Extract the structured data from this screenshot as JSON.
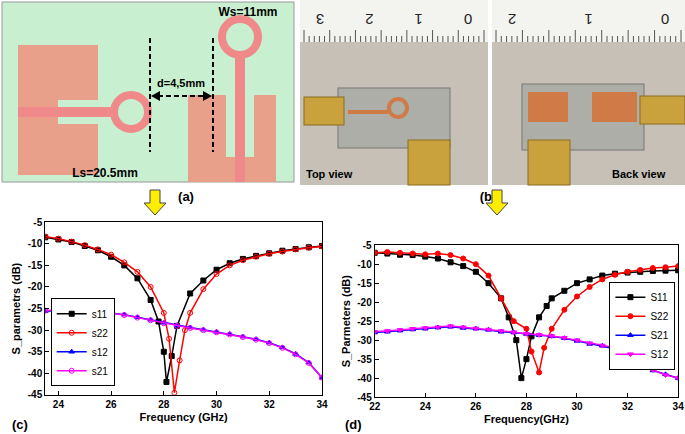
{
  "diagram": {
    "label": "(a)",
    "width_label": "Ws=11mm",
    "gap_label": "d=4,5mm",
    "length_label": "Ls=20.5mm"
  },
  "photo": {
    "label": "(b)",
    "views": [
      {
        "caption": "Top view",
        "ruler": [
          "3",
          "2",
          "1",
          "0"
        ]
      },
      {
        "caption": "Back view",
        "ruler": [
          "2",
          "1",
          "0"
        ]
      }
    ]
  },
  "chart_data": [
    {
      "type": "line",
      "label": "(c)",
      "x_label": "Frequency (GHz)",
      "y_label": "S_parametrs (dB)",
      "xlim": [
        23.5,
        34
      ],
      "xticks": [
        24,
        26,
        28,
        30,
        32,
        34
      ],
      "ylim": [
        -45,
        -5
      ],
      "yticks": [
        -45,
        -40,
        -35,
        -30,
        -25,
        -20,
        -15,
        -10,
        -5
      ],
      "grid": false,
      "legend": "lower left",
      "series": [
        {
          "name": "s11",
          "color": "#000000",
          "marker": "square",
          "x": [
            23.5,
            24,
            24.5,
            25,
            25.5,
            26,
            26.5,
            27,
            27.5,
            27.8,
            28,
            28.1,
            28.3,
            28.5,
            29,
            29.5,
            30,
            30.5,
            31,
            31.5,
            32,
            32.5,
            33,
            33.5,
            34
          ],
          "values": [
            -8.5,
            -9,
            -9.6,
            -10.5,
            -11.5,
            -13,
            -15,
            -18,
            -23,
            -28,
            -35,
            -42,
            -36,
            -29,
            -21.5,
            -18.5,
            -16,
            -14.5,
            -13.5,
            -12.8,
            -12.2,
            -11.6,
            -11.2,
            -10.8,
            -10.5
          ]
        },
        {
          "name": "s22",
          "color": "#ff0000",
          "marker": "circle-open",
          "x": [
            23.5,
            24,
            24.5,
            25,
            25.5,
            26,
            26.5,
            27,
            27.5,
            28,
            28.2,
            28.4,
            28.6,
            28.8,
            29,
            29.5,
            30,
            30.5,
            31,
            31.5,
            32,
            32.5,
            33,
            33.5,
            34
          ],
          "values": [
            -8.3,
            -8.8,
            -9.5,
            -10.3,
            -11.3,
            -12.5,
            -14.3,
            -16.5,
            -20,
            -26,
            -32,
            -44.5,
            -37,
            -30,
            -26,
            -20.5,
            -17,
            -15,
            -13.8,
            -13,
            -12.3,
            -11.8,
            -11.3,
            -10.9,
            -10.6
          ]
        },
        {
          "name": "s12",
          "color": "#0000ff",
          "marker": "triangle-up",
          "x": [
            23.5,
            24,
            24.5,
            25,
            25.5,
            26,
            26.5,
            27,
            27.5,
            28,
            28.5,
            29,
            29.5,
            30,
            30.5,
            31,
            31.5,
            32,
            32.5,
            33,
            33.5,
            34
          ],
          "values": [
            -25.6,
            -25.4,
            -25.3,
            -25.4,
            -25.6,
            -26,
            -26.4,
            -27,
            -27.6,
            -28.3,
            -28.9,
            -29.4,
            -29.9,
            -30.4,
            -30.9,
            -31.5,
            -32.1,
            -32.9,
            -34,
            -35.5,
            -37.5,
            -41
          ]
        },
        {
          "name": "s21",
          "color": "#ff00ff",
          "marker": "circle-open",
          "x": [
            23.5,
            24,
            24.5,
            25,
            25.5,
            26,
            26.5,
            27,
            27.5,
            28,
            28.5,
            29,
            29.5,
            30,
            30.5,
            31,
            31.5,
            32,
            32.5,
            33,
            33.5,
            34
          ],
          "values": [
            -25.5,
            -25.3,
            -25.3,
            -25.4,
            -25.7,
            -26.1,
            -26.5,
            -27.1,
            -27.7,
            -28.4,
            -29,
            -29.5,
            -30,
            -30.5,
            -31,
            -31.6,
            -32.2,
            -33,
            -34.1,
            -35.6,
            -37.6,
            -41
          ]
        }
      ]
    },
    {
      "type": "line",
      "label": "(d)",
      "x_label": "Frequency(GHz)",
      "y_label": "S_Parmeters (dB)",
      "xlim": [
        22,
        34
      ],
      "xticks": [
        22,
        24,
        26,
        28,
        30,
        32,
        34
      ],
      "ylim": [
        -45,
        -5
      ],
      "yticks": [
        -45,
        -40,
        -35,
        -30,
        -25,
        -20,
        -15,
        -10,
        -5
      ],
      "grid": false,
      "legend": "upper right",
      "series": [
        {
          "name": "S11",
          "color": "#000000",
          "marker": "square",
          "x": [
            22,
            22.5,
            23,
            23.5,
            24,
            24.5,
            25,
            25.5,
            26,
            26.5,
            27,
            27.3,
            27.6,
            27.8,
            28,
            28.2,
            28.5,
            28.8,
            29,
            29.5,
            30,
            30.5,
            31,
            31.5,
            32,
            32.5,
            33,
            33.5,
            34
          ],
          "values": [
            -7,
            -7.2,
            -7.5,
            -7.6,
            -8,
            -8.5,
            -9.5,
            -10.5,
            -12,
            -15,
            -19,
            -24,
            -30,
            -40,
            -35,
            -29,
            -24,
            -21,
            -19,
            -17,
            -15,
            -14,
            -13,
            -12.5,
            -12.2,
            -12,
            -11.8,
            -11.7,
            -11.6
          ]
        },
        {
          "name": "S22",
          "color": "#ff0000",
          "marker": "circle",
          "x": [
            22,
            22.5,
            23,
            23.5,
            24,
            24.5,
            25,
            25.5,
            26,
            26.5,
            27,
            27.5,
            28,
            28.2,
            28.5,
            28.7,
            29,
            29.5,
            30,
            30.5,
            31,
            31.5,
            32,
            32.5,
            33,
            33.5,
            34
          ],
          "values": [
            -7,
            -6.8,
            -7,
            -7.2,
            -7.4,
            -7.2,
            -7.6,
            -8.5,
            -10,
            -13,
            -19,
            -25,
            -27,
            -33,
            -38.5,
            -32,
            -27,
            -22,
            -18.5,
            -16,
            -14,
            -12.8,
            -12,
            -11.5,
            -11,
            -10.8,
            -10.5
          ]
        },
        {
          "name": "S21",
          "color": "#0000ff",
          "marker": "triangle-up",
          "x": [
            22,
            22.5,
            23,
            23.5,
            24,
            24.5,
            25,
            25.5,
            26,
            26.5,
            27,
            27.5,
            28,
            28.5,
            29,
            29.5,
            30,
            30.5,
            31,
            31.5,
            32,
            32.5,
            33,
            33.5,
            34
          ],
          "values": [
            -28,
            -27.8,
            -27.5,
            -27.2,
            -27,
            -26.7,
            -26.5,
            -26.8,
            -27,
            -27.3,
            -27.8,
            -28,
            -28.4,
            -28.7,
            -29,
            -29.5,
            -30.2,
            -31,
            -31.5,
            -32.2,
            -33,
            -36,
            -38,
            -39,
            -40
          ]
        },
        {
          "name": "S12",
          "color": "#ff00ff",
          "marker": "triangle-down",
          "x": [
            22,
            22.5,
            23,
            23.5,
            24,
            24.5,
            25,
            25.5,
            26,
            26.5,
            27,
            27.5,
            28,
            28.5,
            29,
            29.5,
            30,
            30.5,
            31,
            31.5,
            32,
            32.5,
            33,
            33.5,
            34
          ],
          "values": [
            -27.8,
            -27.6,
            -27.3,
            -27,
            -26.8,
            -26.6,
            -26.3,
            -26.6,
            -26.9,
            -27.2,
            -27.6,
            -27.9,
            -28.3,
            -28.6,
            -28.9,
            -29.4,
            -30,
            -30.8,
            -31.4,
            -32,
            -33.2,
            -35.8,
            -37.8,
            -39.2,
            -40
          ]
        }
      ]
    }
  ]
}
